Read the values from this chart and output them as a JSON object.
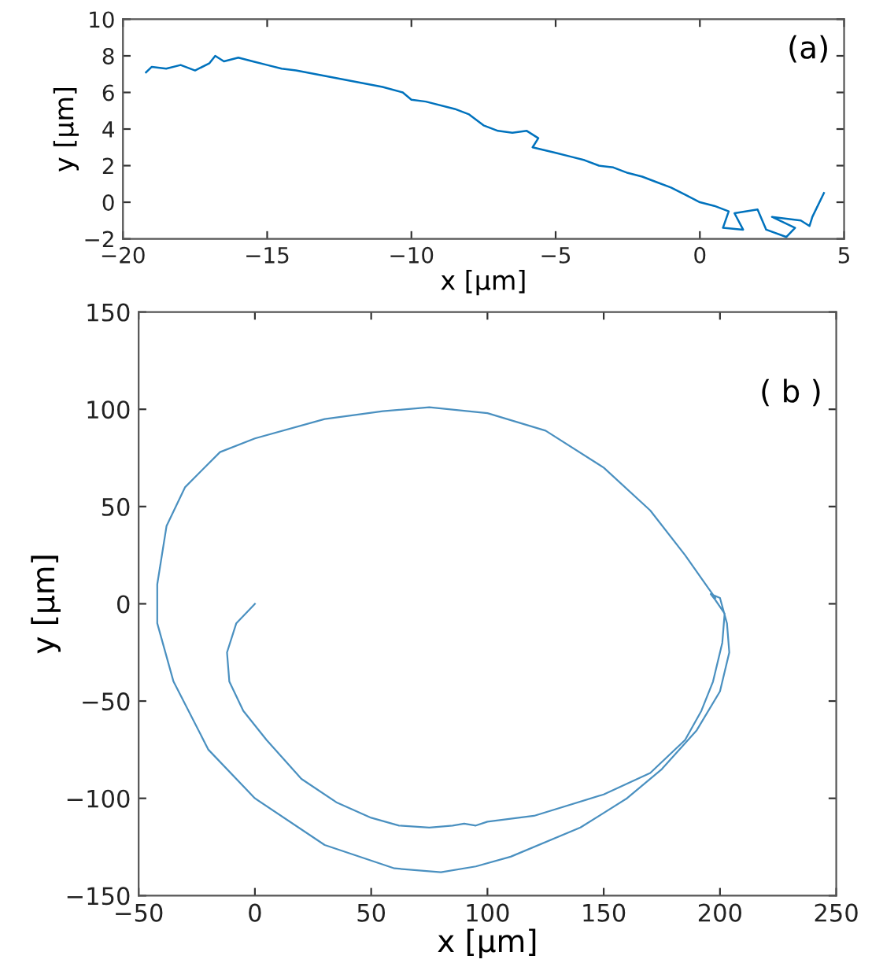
{
  "chart_data": [
    {
      "type": "line",
      "xlabel": "x [μm]",
      "ylabel": "y [μm]",
      "annotations": [
        "(a)"
      ],
      "xlim": [
        -20,
        5
      ],
      "ylim": [
        -2,
        10
      ],
      "xticks": [
        -20,
        -15,
        -10,
        -5,
        0,
        5
      ],
      "yticks": [
        -2,
        0,
        2,
        4,
        6,
        8,
        10
      ],
      "series": [
        {
          "color": "#0072bd",
          "x": [
            -19.2,
            -19,
            -18.5,
            -18,
            -17.5,
            -17,
            -16.8,
            -16.5,
            -16,
            -15.5,
            -15,
            -14.5,
            -14,
            -13,
            -12,
            -11,
            -10.3,
            -10,
            -9.5,
            -8.5,
            -8,
            -7.5,
            -7,
            -6.5,
            -6,
            -5.6,
            -5.8,
            -5,
            -4.5,
            -4,
            -3.5,
            -3,
            -2.5,
            -2,
            -1.5,
            -1,
            -0.5,
            0,
            0.5,
            1,
            0.8,
            1.5,
            1.2,
            2,
            2.3,
            3,
            3.3,
            2.5,
            3.5,
            3.8,
            3.9,
            4.3
          ],
          "values": [
            7.1,
            7.4,
            7.3,
            7.5,
            7.2,
            7.6,
            8.0,
            7.7,
            7.9,
            7.7,
            7.5,
            7.3,
            7.2,
            6.9,
            6.6,
            6.3,
            6.0,
            5.6,
            5.5,
            5.1,
            4.8,
            4.2,
            3.9,
            3.8,
            3.9,
            3.5,
            3.0,
            2.7,
            2.5,
            2.3,
            2.0,
            1.9,
            1.6,
            1.4,
            1.1,
            0.8,
            0.4,
            0,
            -0.2,
            -0.5,
            -1.4,
            -1.5,
            -0.6,
            -0.4,
            -1.5,
            -1.9,
            -1.4,
            -0.8,
            -1.0,
            -1.3,
            -0.8,
            0.5
          ]
        }
      ]
    },
    {
      "type": "line",
      "xlabel": "x [μm]",
      "ylabel": "y [μm]",
      "annotations": [
        "( b )"
      ],
      "xlim": [
        -50,
        250
      ],
      "ylim": [
        -150,
        150
      ],
      "xticks": [
        -50,
        0,
        50,
        100,
        150,
        200,
        250
      ],
      "yticks": [
        -150,
        -100,
        -50,
        0,
        50,
        100,
        150
      ],
      "series": [
        {
          "color": "#4a90c0",
          "x": [
            0,
            -8,
            -12,
            -11,
            -5,
            5,
            20,
            35,
            50,
            62,
            75,
            85,
            90,
            95,
            100,
            120,
            150,
            170,
            185,
            192,
            197,
            201,
            202,
            198,
            196,
            200,
            203,
            204,
            200,
            190,
            175,
            160,
            140,
            110,
            95,
            80,
            60,
            30,
            0,
            -20,
            -35,
            -42,
            -42,
            -38,
            -30,
            -15,
            0,
            30,
            55,
            75,
            100,
            125,
            150,
            170,
            185,
            195,
            198
          ],
          "values": [
            0,
            -10,
            -25,
            -40,
            -55,
            -70,
            -90,
            -102,
            -110,
            -114,
            -115,
            -114,
            -113,
            -114,
            -112,
            -109,
            -98,
            -87,
            -70,
            -55,
            -40,
            -20,
            -5,
            2,
            5,
            3,
            -10,
            -25,
            -45,
            -65,
            -85,
            -100,
            -115,
            -130,
            -135,
            -138,
            -136,
            -124,
            -100,
            -75,
            -40,
            -10,
            10,
            40,
            60,
            78,
            85,
            95,
            99,
            101,
            98,
            89,
            70,
            48,
            25,
            8,
            3
          ]
        }
      ]
    }
  ]
}
